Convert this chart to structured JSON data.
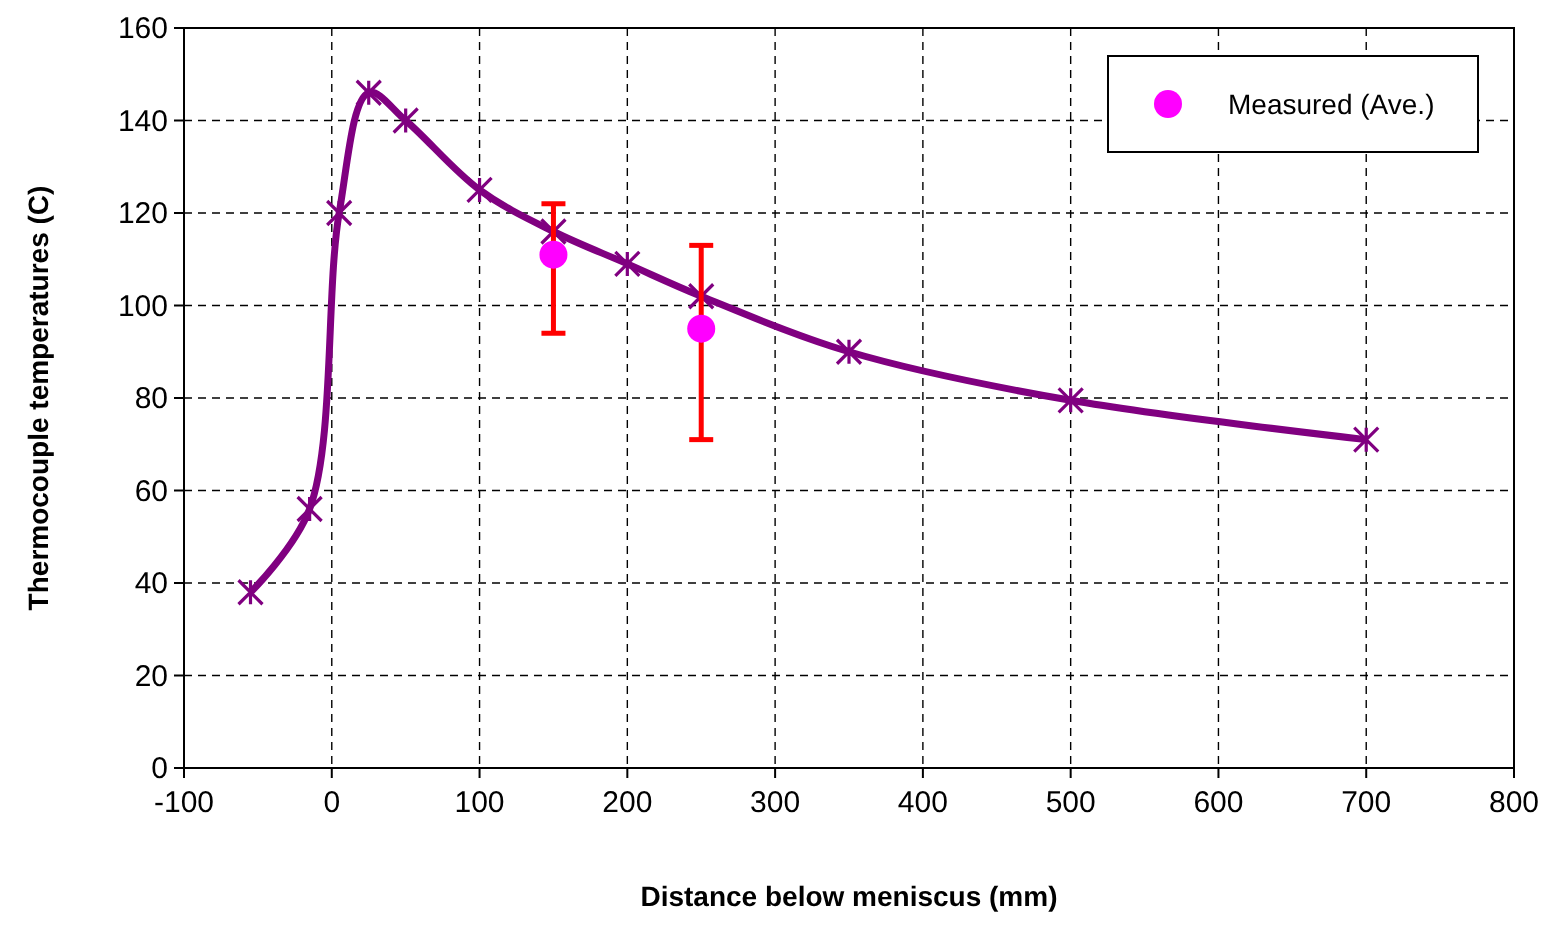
{
  "chart_data": {
    "type": "line",
    "xlabel": "Distance below meniscus (mm)",
    "ylabel": "Thermocouple temperatures (C)",
    "xlim": [
      -100,
      800
    ],
    "xticks": [
      -100,
      0,
      100,
      200,
      300,
      400,
      500,
      600,
      700,
      800
    ],
    "ylim": [
      0,
      160
    ],
    "yticks": [
      0,
      20,
      40,
      60,
      80,
      100,
      120,
      140,
      160
    ],
    "grid": true,
    "legend": "top right",
    "series": [
      {
        "color": "#800080",
        "marker": "cross",
        "x": [
          -55,
          -15,
          5,
          25,
          50,
          100,
          150,
          200,
          250,
          350,
          500,
          700
        ],
        "values": [
          38,
          56,
          120,
          146,
          140,
          125,
          116,
          109,
          102,
          90,
          79.5,
          71
        ]
      },
      {
        "type": "scatter",
        "name": "Measured (Ave.)",
        "color": "#ff00ff",
        "marker": "circle",
        "x": [
          150,
          250
        ],
        "values": [
          111,
          95
        ],
        "errors": [
          [
            94,
            122
          ],
          [
            71,
            113
          ]
        ]
      }
    ]
  }
}
